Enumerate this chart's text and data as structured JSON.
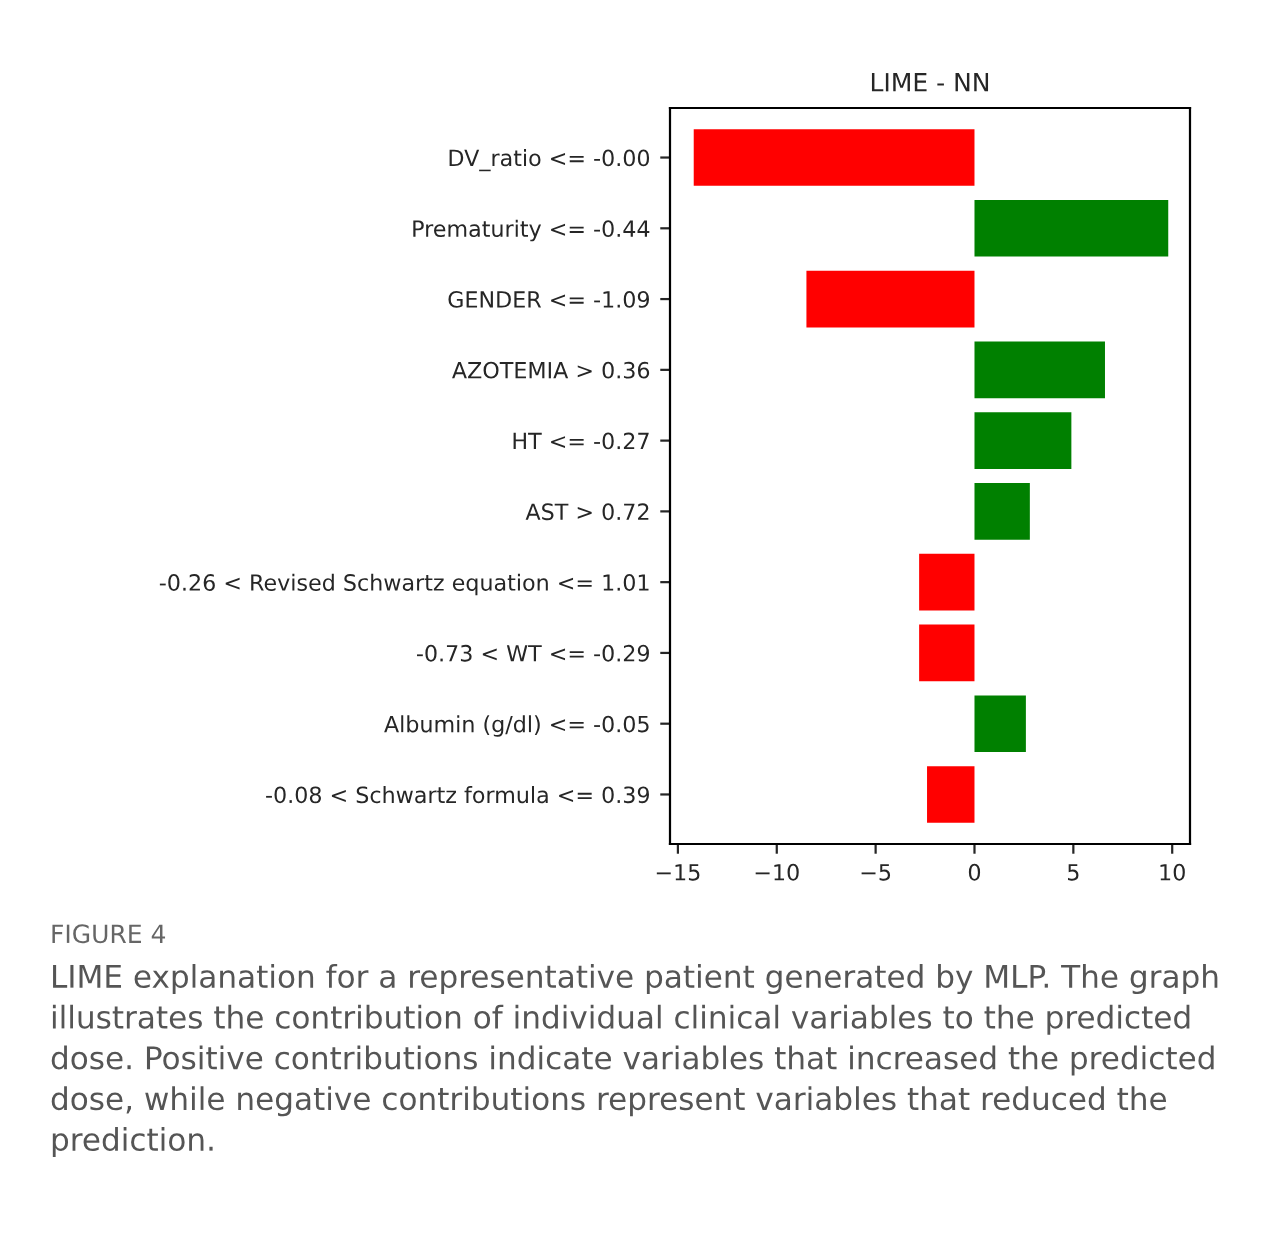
{
  "chart_data": {
    "type": "bar",
    "orientation": "horizontal",
    "title": "LIME - NN",
    "categories": [
      "DV_ratio <= -0.00",
      "Prematurity <= -0.44",
      "GENDER <= -1.09",
      "AZOTEMIA > 0.36",
      "HT <= -0.27",
      "AST > 0.72",
      "-0.26 < Revised Schwartz equation <= 1.01",
      "-0.73 < WT <= -0.29",
      "Albumin (g/dl) <= -0.05",
      "-0.08 < Schwartz formula <= 0.39"
    ],
    "values": [
      -14.2,
      9.8,
      -8.5,
      6.6,
      4.9,
      2.8,
      -2.8,
      -2.8,
      2.6,
      -2.4
    ],
    "colors": [
      "#ff0000",
      "#008000",
      "#ff0000",
      "#008000",
      "#008000",
      "#008000",
      "#ff0000",
      "#ff0000",
      "#008000",
      "#ff0000"
    ],
    "xlim": [
      -15.4,
      10.9
    ],
    "xticks": [
      {
        "value": -15,
        "label": "−15"
      },
      {
        "value": -10,
        "label": "−10"
      },
      {
        "value": -5,
        "label": "−5"
      },
      0,
      5,
      10
    ],
    "annotations": [
      "FIGURE 4",
      "LIME explanation for a representative patient generated by MLP. The graph illustrates the contribution of individual clinical variables to the predicted dose. Positive contributions indicate variables that increased the predicted dose, while negative contributions represent variables that reduced the prediction."
    ]
  }
}
